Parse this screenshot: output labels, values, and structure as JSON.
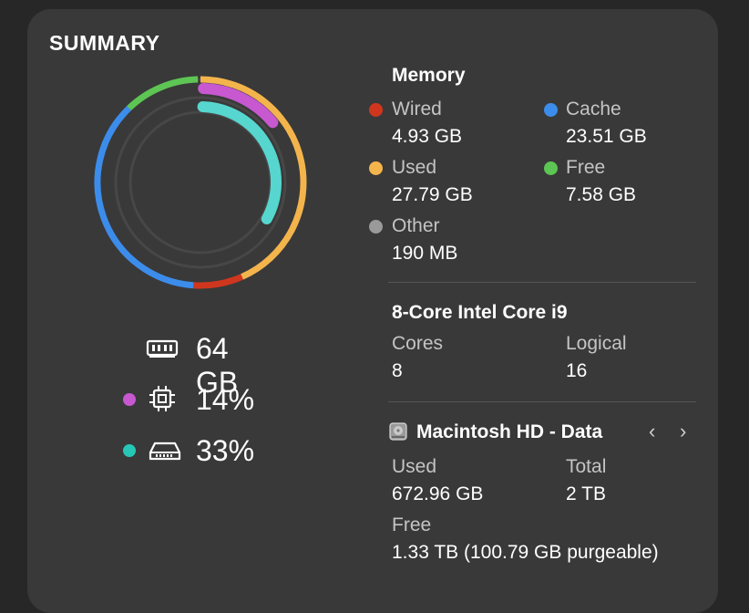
{
  "summary": {
    "title": "SUMMARY",
    "ring": {
      "memory_segments": [
        {
          "name": "Used",
          "fraction": 0.434,
          "color": "#F4B44C"
        },
        {
          "name": "Wired",
          "fraction": 0.077,
          "color": "#D0361E"
        },
        {
          "name": "Cache",
          "fraction": 0.367,
          "color": "#3C8DEB"
        },
        {
          "name": "Free",
          "fraction": 0.118,
          "color": "#5DC554"
        }
      ],
      "cpu_percent": 14,
      "cpu_color": "#C758D0",
      "disk_percent": 33,
      "disk_color": "#56D6CF"
    },
    "stats": [
      {
        "icon": "memory-chip-icon",
        "value": "64 GB"
      },
      {
        "icon": "cpu-chip-icon",
        "value": "14%",
        "dot_color": "#C758D0"
      },
      {
        "icon": "disk-drive-icon",
        "value": "33%",
        "dot_color": "#27C7B8"
      }
    ]
  },
  "memory": {
    "heading": "Memory",
    "items": [
      {
        "label": "Wired",
        "value": "4.93 GB",
        "color": "#D0361E"
      },
      {
        "label": "Cache",
        "value": "23.51 GB",
        "color": "#3C8DEB"
      },
      {
        "label": "Used",
        "value": "27.79 GB",
        "color": "#F4B44C"
      },
      {
        "label": "Free",
        "value": "7.58 GB",
        "color": "#5DC554"
      },
      {
        "label": "Other",
        "value": "190 MB",
        "color": "#9A9A9A"
      }
    ]
  },
  "cpu": {
    "heading": "8-Core Intel Core i9",
    "cores_label": "Cores",
    "cores_value": "8",
    "logical_label": "Logical",
    "logical_value": "16"
  },
  "disk": {
    "heading": "Macintosh HD - Data",
    "icon": "hard-drive-icon",
    "used_label": "Used",
    "used_value": "672.96 GB",
    "total_label": "Total",
    "total_value": "2 TB",
    "free_label": "Free",
    "free_value": "1.33 TB (100.79 GB purgeable)",
    "prev_glyph": "‹",
    "next_glyph": "›"
  }
}
